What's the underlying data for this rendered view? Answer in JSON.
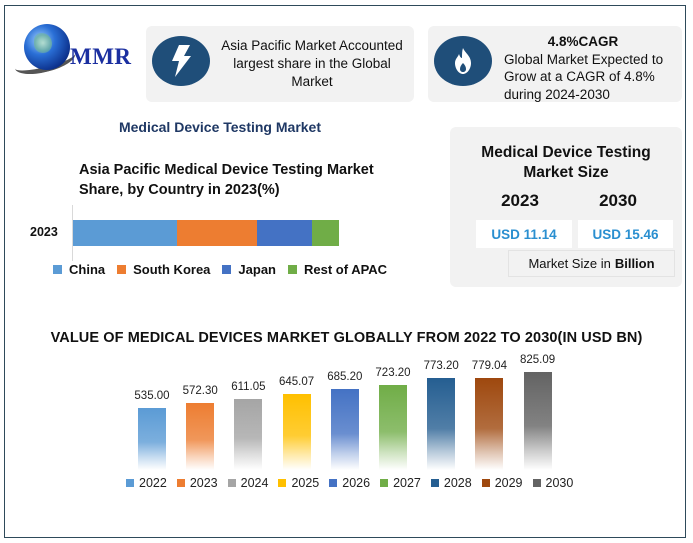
{
  "logo": {
    "text": "MMR"
  },
  "cards": {
    "region": {
      "icon": "lightning-bolt-icon",
      "text": "Asia Pacific Market Accounted largest share in the Global Market"
    },
    "cagr": {
      "icon": "flame-icon",
      "title": "4.8%CAGR",
      "text": "Global Market Expected to Grow at a CAGR of 4.8% during 2024-2030"
    }
  },
  "section_title": "Medical Device Testing Market",
  "market_size": {
    "title_line1": "Medical Device Testing",
    "title_line2": "Market Size",
    "year1": "2023",
    "year2": "2030",
    "value1": "USD 11.14",
    "value2": "USD 15.46",
    "unit_prefix": "Market Size in",
    "unit_bold": "Billion"
  },
  "colors": {
    "china": "#5b9bd5",
    "south_korea": "#ed7d31",
    "japan": "#4472c4",
    "rest_of_apac": "#70ad47",
    "badge": "#1f4e79",
    "accent_value": "#2a8fd0"
  },
  "chart_data": [
    {
      "type": "bar",
      "orientation": "horizontal-stacked",
      "title": "Asia Pacific Medical Device Testing Market Share, by Country in 2023(%)",
      "title_line1": "Asia Pacific Medical Device Testing Market",
      "title_line2": "Share, by Country in 2023(%)",
      "categories": [
        "2023"
      ],
      "series": [
        {
          "name": "China",
          "values": [
            39
          ],
          "color": "#5b9bd5"
        },
        {
          "name": "South Korea",
          "values": [
            30
          ],
          "color": "#ed7d31"
        },
        {
          "name": "Japan",
          "values": [
            21
          ],
          "color": "#4472c4"
        },
        {
          "name": "Rest of APAC",
          "values": [
            10
          ],
          "color": "#70ad47"
        }
      ],
      "legend_position": "bottom",
      "grid": false
    },
    {
      "type": "bar",
      "title": "VALUE OF MEDICAL DEVICES MARKET GLOBALLY FROM 2022 TO 2030(IN USD BN)",
      "xlabel": "",
      "ylabel": "",
      "categories": [
        "2022",
        "2023",
        "2024",
        "2025",
        "2026",
        "2027",
        "2028",
        "2029",
        "2030"
      ],
      "values": [
        535.0,
        572.3,
        611.05,
        645.07,
        685.2,
        723.2,
        773.2,
        779.04,
        825.09
      ],
      "labels": [
        "535.00",
        "572.30",
        "611.05",
        "645.07",
        "685.20",
        "723.20",
        "773.20",
        "779.04",
        "825.09"
      ],
      "colors": [
        "#5b9bd5",
        "#ed7d31",
        "#a5a5a5",
        "#ffc000",
        "#4472c4",
        "#70ad47",
        "#255e91",
        "#9e480e",
        "#636363"
      ],
      "legend_position": "bottom",
      "grid": false
    }
  ]
}
